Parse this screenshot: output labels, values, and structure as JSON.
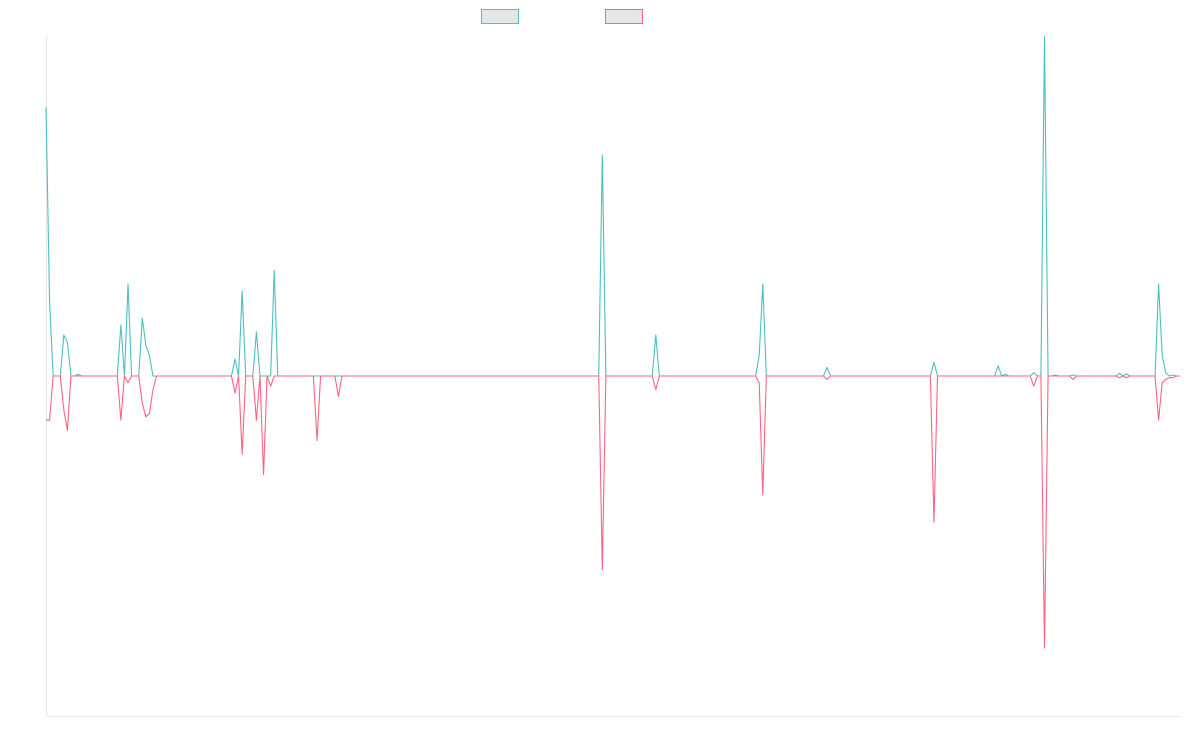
{
  "chart_data": {
    "type": "line",
    "title": "",
    "xlabel": "",
    "ylabel": "",
    "grid": false,
    "legend_position": "top",
    "ylim": [
      -100,
      100
    ],
    "series": [
      {
        "color": "#4bc0c0",
        "values": [
          79,
          22,
          0,
          0,
          0,
          12,
          10,
          0,
          0,
          0.5,
          0,
          0,
          0,
          0,
          0,
          0,
          0,
          0,
          0,
          0,
          0,
          15,
          0,
          27,
          0,
          0,
          0,
          17,
          9,
          6,
          0,
          0,
          0,
          0,
          0,
          0,
          0,
          0,
          0,
          0,
          0,
          0,
          0,
          0,
          0,
          0,
          0,
          0,
          0,
          0,
          0,
          0,
          0,
          5,
          0,
          25,
          0,
          0,
          0,
          13,
          0,
          0,
          0,
          0,
          31,
          0,
          0,
          0,
          0,
          0,
          0,
          0,
          0,
          0,
          0,
          0,
          0,
          0,
          0,
          0,
          0,
          0,
          0,
          0,
          0,
          0,
          0,
          0,
          0,
          0,
          0,
          0,
          0,
          0,
          0,
          0,
          0,
          0,
          0,
          0,
          0,
          0,
          0,
          0,
          0,
          0,
          0,
          0,
          0,
          0,
          0,
          0,
          0,
          0,
          0,
          0,
          0,
          0,
          0,
          0,
          0,
          0,
          0,
          0,
          0,
          0,
          0,
          0,
          0,
          0,
          0,
          0,
          0,
          0,
          0,
          0,
          0,
          0,
          0,
          0,
          0,
          0,
          0,
          0,
          0,
          0,
          0,
          0,
          0,
          0,
          0,
          0,
          0,
          0,
          0,
          0,
          65,
          0,
          0,
          0,
          0,
          0,
          0,
          0,
          0,
          0,
          0,
          0,
          0,
          0,
          0,
          12,
          0,
          0,
          0,
          0,
          0,
          0,
          0,
          0,
          0,
          0,
          0,
          0,
          0,
          0,
          0,
          0,
          0,
          0,
          0,
          0,
          0,
          0,
          0,
          0,
          0,
          0,
          0,
          0,
          6,
          27,
          0,
          0,
          0,
          0,
          0,
          0,
          0,
          0,
          0,
          0,
          0,
          0,
          0,
          0,
          0,
          0,
          0,
          2.5,
          0,
          0,
          0,
          0,
          0,
          0,
          0,
          0,
          0,
          0,
          0,
          0,
          0,
          0,
          0,
          0,
          0,
          0,
          0,
          0,
          0,
          0,
          0,
          0,
          0,
          0,
          0,
          0,
          0,
          4,
          0,
          0,
          0,
          0,
          0,
          0,
          0,
          0,
          0,
          0,
          0,
          0,
          0,
          0,
          0,
          0,
          0,
          3,
          0,
          0.5,
          0,
          0,
          0,
          0,
          0,
          0,
          0,
          1,
          0,
          0,
          100,
          0,
          0,
          0.3,
          0,
          0,
          0,
          0,
          0.3,
          0,
          0,
          0,
          0,
          0,
          0,
          0,
          0,
          0,
          0,
          0,
          0,
          0.8,
          0,
          0.6,
          0,
          0,
          0,
          0,
          0,
          0,
          0,
          0,
          27,
          6,
          1,
          0,
          0.3,
          0,
          0
        ]
      },
      {
        "color": "#ff6384",
        "values": [
          -13,
          -13,
          0,
          0,
          0,
          -10,
          -16,
          0,
          0,
          0,
          0,
          0,
          0,
          0,
          0,
          0,
          0,
          0,
          0,
          0,
          0,
          -13,
          0,
          -2,
          0,
          0,
          0,
          -8,
          -12,
          -11,
          -4,
          0,
          0,
          0,
          0,
          0,
          0,
          0,
          0,
          0,
          0,
          0,
          0,
          0,
          0,
          0,
          0,
          0,
          0,
          0,
          0,
          0,
          0,
          -5,
          0,
          -23,
          0,
          0,
          0,
          -13,
          0,
          -29,
          0,
          -3,
          0,
          0,
          0,
          0,
          0,
          0,
          0,
          0,
          0,
          0,
          0,
          0,
          -19,
          0,
          0,
          0,
          0,
          0,
          -6,
          0,
          0,
          0,
          0,
          0,
          0,
          0,
          0,
          0,
          0,
          0,
          0,
          0,
          0,
          0,
          0,
          0,
          0,
          0,
          0,
          0,
          0,
          0,
          0,
          0,
          0,
          0,
          0,
          0,
          0,
          0,
          0,
          0,
          0,
          0,
          0,
          0,
          0,
          0,
          0,
          0,
          0,
          0,
          0,
          0,
          0,
          0,
          0,
          0,
          0,
          0,
          0,
          0,
          0,
          0,
          0,
          0,
          0,
          0,
          0,
          0,
          0,
          0,
          0,
          0,
          0,
          0,
          0,
          0,
          0,
          0,
          0,
          0,
          -57,
          0,
          0,
          0,
          0,
          0,
          0,
          0,
          0,
          0,
          0,
          0,
          0,
          0,
          0,
          -4,
          0,
          0,
          0,
          0,
          0,
          0,
          0,
          0,
          0,
          0,
          0,
          0,
          0,
          0,
          0,
          0,
          0,
          0,
          0,
          0,
          0,
          0,
          0,
          0,
          0,
          0,
          0,
          0,
          -2,
          -35,
          0,
          0,
          0,
          0,
          0,
          0,
          0,
          0,
          0,
          0,
          0,
          0,
          0,
          0,
          0,
          0,
          0,
          -1,
          0,
          0,
          0,
          0,
          0,
          0,
          0,
          0,
          0,
          0,
          0,
          0,
          0,
          0,
          0,
          0,
          0,
          0,
          0,
          0,
          0,
          0,
          0,
          0,
          0,
          0,
          0,
          0,
          0,
          -43,
          0,
          0,
          0,
          0,
          0,
          0,
          0,
          0,
          0,
          0,
          0,
          0,
          0,
          0,
          0,
          0,
          0,
          0,
          0,
          0,
          0,
          0,
          0,
          0,
          0,
          0,
          0,
          -3,
          0,
          0,
          -80,
          0,
          0,
          0,
          0,
          0,
          0,
          0,
          -1,
          0,
          0,
          0,
          0,
          0,
          0,
          0,
          0,
          0,
          0,
          0,
          0,
          -0.5,
          0,
          -0.5,
          0,
          0,
          0,
          0,
          0,
          0,
          0,
          0,
          -13,
          -2,
          -1,
          -0.5,
          -0.5,
          0,
          0
        ]
      }
    ]
  }
}
